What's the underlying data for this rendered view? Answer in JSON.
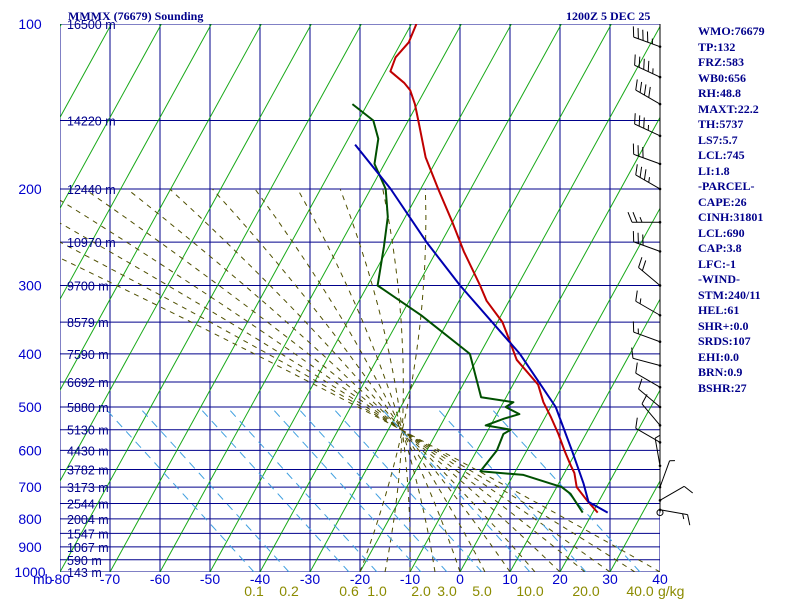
{
  "header": {
    "station": "MMMX (76679) Sounding",
    "time": "1200Z  5 DEC 25"
  },
  "stats": [
    "WMO:76679",
    "TP:132",
    "FRZ:583",
    "WB0:656",
    "RH:48.8",
    "MAXT:22.2",
    "TH:5737",
    "LS7:5.7",
    "LCL:745",
    "LI:1.8",
    "-PARCEL-",
    "CAPE:26",
    "CINH:31801",
    "LCL:690",
    "CAP:3.8",
    "LFC:-1",
    "-WIND-",
    "STM:240/11",
    "HEL:61",
    "SHR+:0.0",
    "SRDS:107",
    "EHI:0.0",
    "BRN:0.9",
    "BSHR:27"
  ],
  "colors": {
    "grid": "#00008b",
    "dry_adiabat": "#00a000",
    "moist_adiabat": "#505000",
    "mixing_ratio": "#3f9fdf",
    "temperature": "#c00000",
    "dewpoint": "#005000",
    "parcel": "#0000b0",
    "axis_text": "#0000cd",
    "mixing_text": "#8b8b00"
  },
  "chart_data": {
    "type": "line",
    "title": "MMMX (76679) Sounding",
    "xlabel": "",
    "ylabel": "mb",
    "y_scale": "log",
    "xlim": [
      -80,
      40
    ],
    "ylim": [
      1000,
      100
    ],
    "grid": true,
    "pressure_ticks": [
      {
        "label": "100",
        "p": 100
      },
      {
        "label": "200",
        "p": 200
      },
      {
        "label": "300",
        "p": 300
      },
      {
        "label": "400",
        "p": 400
      },
      {
        "label": "500",
        "p": 500
      },
      {
        "label": "600",
        "p": 600
      },
      {
        "label": "700",
        "p": 700
      },
      {
        "label": "800",
        "p": 800
      },
      {
        "label": "900",
        "p": 900
      },
      {
        "label": "1000",
        "p": 1000
      }
    ],
    "temperature_ticks": [
      {
        "label": "-80",
        "t": -80
      },
      {
        "label": "-70",
        "t": -70
      },
      {
        "label": "-60",
        "t": -60
      },
      {
        "label": "-50",
        "t": -50
      },
      {
        "label": "-40",
        "t": -40
      },
      {
        "label": "-30",
        "t": -30
      },
      {
        "label": "-20",
        "t": -20
      },
      {
        "label": "-10",
        "t": -10
      },
      {
        "label": "0",
        "t": 0
      },
      {
        "label": "10",
        "t": 10
      },
      {
        "label": "20",
        "t": 20
      },
      {
        "label": "30",
        "t": 30
      },
      {
        "label": "40",
        "t": 40
      }
    ],
    "height_ticks": [
      {
        "label": "16500 m",
        "p": 100
      },
      {
        "label": "14220 m",
        "p": 150
      },
      {
        "label": "12440 m",
        "p": 200
      },
      {
        "label": "10970 m",
        "p": 250
      },
      {
        "label": "9700 m",
        "p": 300
      },
      {
        "label": "8579 m",
        "p": 350
      },
      {
        "label": "7590 m",
        "p": 400
      },
      {
        "label": "6692 m",
        "p": 450
      },
      {
        "label": "5880 m",
        "p": 500
      },
      {
        "label": "5130 m",
        "p": 550
      },
      {
        "label": "4430 m",
        "p": 600
      },
      {
        "label": "3782 m",
        "p": 650
      },
      {
        "label": "3173 m",
        "p": 700
      },
      {
        "label": "2544 m",
        "p": 750
      },
      {
        "label": "2004 m",
        "p": 800
      },
      {
        "label": "1547 m",
        "p": 850
      },
      {
        "label": "1067 m",
        "p": 900
      },
      {
        "label": "590 m",
        "p": 950
      },
      {
        "label": "143 m",
        "p": 1000
      }
    ],
    "mixing_ratio_ticks": [
      {
        "label": "0.1",
        "w": 0.1
      },
      {
        "label": "0.2",
        "w": 0.2
      },
      {
        "label": "0.6",
        "w": 0.6
      },
      {
        "label": "1.0",
        "w": 1.0
      },
      {
        "label": "2.0",
        "w": 2.0
      },
      {
        "label": "3.0",
        "w": 3.0
      },
      {
        "label": "5.0",
        "w": 5.0
      },
      {
        "label": "10.0",
        "w": 10.0
      },
      {
        "label": "20.0",
        "w": 20.0
      },
      {
        "label": "40.0",
        "w": 40.0
      }
    ],
    "mixing_unit": "g/kg",
    "series": [
      {
        "key": "temperature",
        "points": [
          [
            779,
            21.0
          ],
          [
            740,
            17.5
          ],
          [
            700,
            14.0
          ],
          [
            660,
            12.0
          ],
          [
            640,
            10.5
          ],
          [
            600,
            7.5
          ],
          [
            560,
            4.5
          ],
          [
            520,
            1.0
          ],
          [
            490,
            -2.0
          ],
          [
            455,
            -5.0
          ],
          [
            410,
            -12.0
          ],
          [
            370,
            -16.5
          ],
          [
            350,
            -19.0
          ],
          [
            320,
            -24.5
          ],
          [
            300,
            -27.5
          ],
          [
            260,
            -34.5
          ],
          [
            230,
            -40.0
          ],
          [
            200,
            -46.5
          ],
          [
            175,
            -52.5
          ],
          [
            150,
            -58.0
          ],
          [
            140,
            -60.5
          ],
          [
            132,
            -63.0
          ],
          [
            128,
            -65.0
          ],
          [
            122,
            -69.0
          ],
          [
            115,
            -69.5
          ],
          [
            108,
            -68.5
          ],
          [
            100,
            -69.0
          ]
        ]
      },
      {
        "key": "dewpoint",
        "points": [
          [
            779,
            18.0
          ],
          [
            720,
            13.5
          ],
          [
            700,
            11.0
          ],
          [
            665,
            2.0
          ],
          [
            655,
            -7.0
          ],
          [
            600,
            -6.0
          ],
          [
            560,
            -6.5
          ],
          [
            550,
            -5.5
          ],
          [
            540,
            -11.0
          ],
          [
            525,
            -8.0
          ],
          [
            515,
            -5.5
          ],
          [
            500,
            -9.0
          ],
          [
            490,
            -8.0
          ],
          [
            480,
            -15.0
          ],
          [
            400,
            -22.0
          ],
          [
            340,
            -36.0
          ],
          [
            300,
            -48.0
          ],
          [
            255,
            -51.0
          ],
          [
            225,
            -53.5
          ],
          [
            200,
            -57.0
          ],
          [
            180,
            -62.0
          ],
          [
            162,
            -64.0
          ],
          [
            150,
            -67.0
          ],
          [
            140,
            -73.0
          ]
        ]
      },
      {
        "key": "parcel",
        "points": [
          [
            779,
            23.0
          ],
          [
            745,
            18.0
          ],
          [
            690,
            15.0
          ],
          [
            600,
            9.0
          ],
          [
            500,
            1.0
          ],
          [
            400,
            -12.0
          ],
          [
            300,
            -31.5
          ],
          [
            250,
            -43.0
          ],
          [
            200,
            -56.0
          ],
          [
            166,
            -68.0
          ]
        ]
      }
    ],
    "wind_barbs": [
      {
        "p": 110,
        "dir": 290,
        "kt": 45
      },
      {
        "p": 125,
        "dir": 295,
        "kt": 45
      },
      {
        "p": 140,
        "dir": 300,
        "kt": 40
      },
      {
        "p": 160,
        "dir": 295,
        "kt": 35
      },
      {
        "p": 180,
        "dir": 290,
        "kt": 30
      },
      {
        "p": 200,
        "dir": 300,
        "kt": 35
      },
      {
        "p": 230,
        "dir": 270,
        "kt": 25
      },
      {
        "p": 260,
        "dir": 290,
        "kt": 30
      },
      {
        "p": 300,
        "dir": 310,
        "kt": 20
      },
      {
        "p": 340,
        "dir": 300,
        "kt": 15
      },
      {
        "p": 380,
        "dir": 290,
        "kt": 15
      },
      {
        "p": 420,
        "dir": 285,
        "kt": 10
      },
      {
        "p": 460,
        "dir": 300,
        "kt": 10
      },
      {
        "p": 500,
        "dir": 310,
        "kt": 10
      },
      {
        "p": 540,
        "dir": 320,
        "kt": 10
      },
      {
        "p": 580,
        "dir": 300,
        "kt": 10
      },
      {
        "p": 640,
        "dir": 350,
        "kt": 5
      },
      {
        "p": 700,
        "dir": 20,
        "kt": 5
      },
      {
        "p": 740,
        "dir": 60,
        "kt": 10
      },
      {
        "p": 770,
        "dir": 100,
        "kt": 15
      }
    ]
  }
}
